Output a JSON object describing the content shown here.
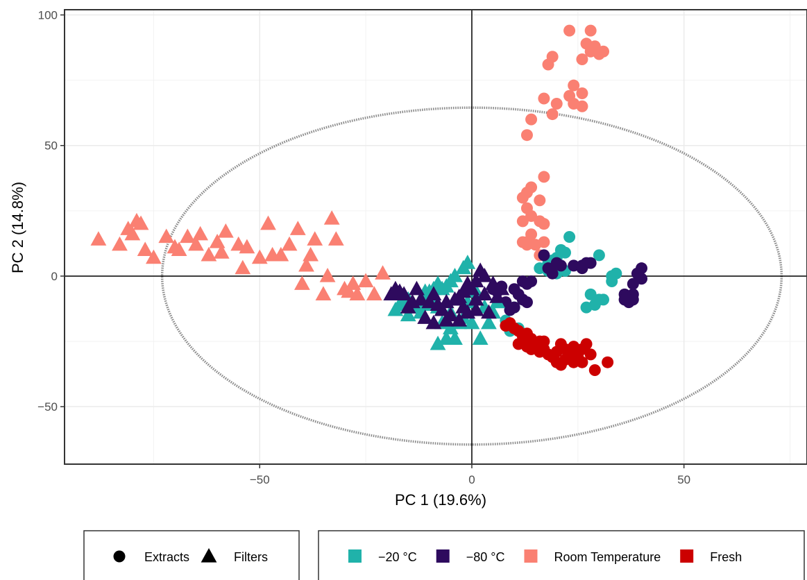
{
  "chart_data": {
    "type": "scatter",
    "title": "",
    "xlabel": "PC 1 (19.6%)",
    "ylabel": "PC 2 (14.8%)",
    "xlim": [
      -96,
      79
    ],
    "ylim": [
      -72,
      102
    ],
    "x_ticks": [
      -50,
      0,
      50
    ],
    "y_ticks": [
      -50,
      0,
      50,
      100
    ],
    "x_tick_labels": [
      "−50",
      "0",
      "50"
    ],
    "y_tick_labels": [
      "−50",
      "0",
      "50",
      "100"
    ],
    "grid": true,
    "reference_lines": {
      "x": 0,
      "y": 0
    },
    "ellipse": {
      "center": [
        0,
        0
      ],
      "rx": 73,
      "ry": 64.5,
      "style": "dotted",
      "color": "#8c8c8c"
    },
    "shape_legend": [
      {
        "name": "Extracts",
        "shape": "circle"
      },
      {
        "name": "Filters",
        "shape": "triangle"
      }
    ],
    "color_legend": [
      {
        "name": "−20 °C",
        "color": "#20b2aa"
      },
      {
        "name": "−80 °C",
        "color": "#2e0a5e"
      },
      {
        "name": "Room Temperature",
        "color": "#fa8072"
      },
      {
        "name": "Fresh",
        "color": "#cc0000"
      }
    ],
    "series": [
      {
        "name": "Room Temperature",
        "shape": "triangle",
        "color": "#fa8072",
        "points": [
          [
            -88,
            14
          ],
          [
            -83,
            12
          ],
          [
            -81,
            18
          ],
          [
            -79,
            21
          ],
          [
            -80,
            16
          ],
          [
            -78,
            20
          ],
          [
            -77,
            10
          ],
          [
            -75,
            7
          ],
          [
            -72,
            15
          ],
          [
            -70,
            11
          ],
          [
            -69,
            10
          ],
          [
            -67,
            15
          ],
          [
            -65,
            12
          ],
          [
            -64,
            16
          ],
          [
            -62,
            8
          ],
          [
            -60,
            13
          ],
          [
            -59,
            9
          ],
          [
            -58,
            17
          ],
          [
            -55,
            12
          ],
          [
            -54,
            3
          ],
          [
            -53,
            11
          ],
          [
            -50,
            7
          ],
          [
            -48,
            20
          ],
          [
            -47,
            8
          ],
          [
            -45,
            8
          ],
          [
            -43,
            12
          ],
          [
            -41,
            18
          ],
          [
            -40,
            -3
          ],
          [
            -39,
            4
          ],
          [
            -38,
            8
          ],
          [
            -37,
            14
          ],
          [
            -35,
            -7
          ],
          [
            -34,
            0
          ],
          [
            -33,
            22
          ],
          [
            -32,
            14
          ],
          [
            -30,
            -5
          ],
          [
            -29,
            -6
          ],
          [
            -28,
            -3
          ],
          [
            -27,
            -7
          ],
          [
            -25,
            -2
          ],
          [
            -23,
            -7
          ],
          [
            -21,
            1
          ]
        ]
      },
      {
        "name": "Room Temperature",
        "shape": "circle",
        "color": "#fa8072",
        "points": [
          [
            23,
            94
          ],
          [
            28,
            94
          ],
          [
            27,
            89
          ],
          [
            29,
            88
          ],
          [
            28,
            86
          ],
          [
            31,
            86
          ],
          [
            30,
            85
          ],
          [
            26,
            83
          ],
          [
            19,
            84
          ],
          [
            18,
            81
          ],
          [
            24,
            73
          ],
          [
            26,
            70
          ],
          [
            23,
            69
          ],
          [
            17,
            68
          ],
          [
            20,
            66
          ],
          [
            24,
            66
          ],
          [
            26,
            65
          ],
          [
            19,
            62
          ],
          [
            14,
            60
          ],
          [
            13,
            54
          ],
          [
            17,
            38
          ],
          [
            14,
            34
          ],
          [
            13,
            32
          ],
          [
            16,
            29
          ],
          [
            12,
            30
          ],
          [
            13,
            26
          ],
          [
            14,
            23
          ],
          [
            12,
            21
          ],
          [
            16,
            21
          ],
          [
            17,
            20
          ],
          [
            14,
            16
          ],
          [
            13,
            13
          ],
          [
            17,
            13
          ],
          [
            15,
            12
          ],
          [
            13,
            12
          ],
          [
            16,
            8
          ],
          [
            12,
            13
          ]
        ]
      },
      {
        "name": "−20 °C",
        "shape": "circle",
        "color": "#20b2aa",
        "points": [
          [
            23,
            15
          ],
          [
            21,
            10
          ],
          [
            20,
            7
          ],
          [
            22,
            9
          ],
          [
            19,
            6
          ],
          [
            18,
            5
          ],
          [
            16,
            3
          ],
          [
            18,
            2
          ],
          [
            20,
            1
          ],
          [
            22,
            2
          ],
          [
            30,
            8
          ],
          [
            33,
            0
          ],
          [
            34,
            1
          ],
          [
            33,
            -2
          ],
          [
            28,
            -7
          ],
          [
            30,
            -9
          ],
          [
            31,
            -9
          ],
          [
            29,
            -11
          ],
          [
            27,
            -12
          ],
          [
            10,
            -12
          ],
          [
            8,
            -17
          ],
          [
            9,
            -21
          ],
          [
            11,
            -20
          ],
          [
            12,
            -22
          ]
        ]
      },
      {
        "name": "−80 °C",
        "shape": "circle",
        "color": "#2e0a5e",
        "points": [
          [
            17,
            8
          ],
          [
            20,
            5
          ],
          [
            18,
            3
          ],
          [
            19,
            1
          ],
          [
            21,
            4
          ],
          [
            24,
            4
          ],
          [
            26,
            3
          ],
          [
            27,
            5
          ],
          [
            28,
            5
          ],
          [
            26,
            4
          ],
          [
            40,
            3
          ],
          [
            39,
            1
          ],
          [
            40,
            -1
          ],
          [
            38,
            -3
          ],
          [
            38,
            -7
          ],
          [
            37,
            -8
          ],
          [
            38,
            -9
          ],
          [
            36,
            -7
          ],
          [
            36,
            -9
          ],
          [
            37,
            -10
          ],
          [
            12,
            -2
          ],
          [
            13,
            -3
          ],
          [
            14,
            -2
          ],
          [
            10,
            -5
          ],
          [
            11,
            -7
          ],
          [
            12,
            -9
          ],
          [
            13,
            -10
          ],
          [
            10,
            -12
          ],
          [
            9,
            -13
          ],
          [
            8,
            -10
          ],
          [
            6,
            -6
          ],
          [
            7,
            -4
          ],
          [
            5,
            -5
          ]
        ]
      },
      {
        "name": "−20 °C",
        "shape": "triangle",
        "color": "#20b2aa",
        "points": [
          [
            -1,
            5
          ],
          [
            -2,
            3
          ],
          [
            -4,
            0
          ],
          [
            -5,
            -2
          ],
          [
            -6,
            -4
          ],
          [
            -7,
            -5
          ],
          [
            -8,
            -3
          ],
          [
            -9,
            -5
          ],
          [
            -10,
            -6
          ],
          [
            -11,
            -8
          ],
          [
            -12,
            -10
          ],
          [
            -13,
            -12
          ],
          [
            -14,
            -11
          ],
          [
            -15,
            -9
          ],
          [
            -16,
            -8
          ],
          [
            -17,
            -11
          ],
          [
            -18,
            -13
          ],
          [
            -15,
            -15
          ],
          [
            -12,
            -14
          ],
          [
            -8,
            -12
          ],
          [
            -7,
            -18
          ],
          [
            -5,
            -20
          ],
          [
            -3,
            -18
          ],
          [
            -2,
            -16
          ],
          [
            -4,
            -24
          ],
          [
            -6,
            -24
          ],
          [
            -8,
            -26
          ],
          [
            0,
            -18
          ],
          [
            2,
            -24
          ],
          [
            4,
            -18
          ],
          [
            5,
            -14
          ],
          [
            3,
            -12
          ],
          [
            6,
            -10
          ],
          [
            1,
            -6
          ],
          [
            -1,
            -10
          ],
          [
            -5,
            -14
          ],
          [
            -9,
            -9
          ],
          [
            -10,
            -11
          ],
          [
            -11,
            -6
          ]
        ]
      },
      {
        "name": "−80 °C",
        "shape": "triangle",
        "color": "#2e0a5e",
        "points": [
          [
            2,
            2
          ],
          [
            3,
            0
          ],
          [
            1,
            -2
          ],
          [
            -1,
            -3
          ],
          [
            0,
            -5
          ],
          [
            -2,
            -6
          ],
          [
            -3,
            -8
          ],
          [
            -4,
            -9
          ],
          [
            -6,
            -10
          ],
          [
            -8,
            -11
          ],
          [
            -10,
            -10
          ],
          [
            -12,
            -9
          ],
          [
            -14,
            -10
          ],
          [
            -15,
            -12
          ],
          [
            -16,
            -7
          ],
          [
            -18,
            -5
          ],
          [
            -19,
            -7
          ],
          [
            -17,
            -6
          ],
          [
            -13,
            -5
          ],
          [
            -9,
            -7
          ],
          [
            -7,
            -13
          ],
          [
            -5,
            -15
          ],
          [
            -3,
            -17
          ],
          [
            -6,
            -17
          ],
          [
            -9,
            -18
          ],
          [
            -11,
            -16
          ],
          [
            -2,
            -12
          ],
          [
            1,
            -13
          ],
          [
            4,
            -14
          ],
          [
            6,
            -8
          ],
          [
            7,
            -5
          ],
          [
            5,
            -3
          ],
          [
            3,
            -7
          ],
          [
            1,
            -9
          ],
          [
            -1,
            -14
          ]
        ]
      },
      {
        "name": "Fresh",
        "shape": "circle",
        "color": "#cc0000",
        "points": [
          [
            8,
            -19
          ],
          [
            9,
            -18
          ],
          [
            10,
            -20
          ],
          [
            11,
            -21
          ],
          [
            12,
            -23
          ],
          [
            13,
            -22
          ],
          [
            14,
            -24
          ],
          [
            13,
            -27
          ],
          [
            15,
            -26
          ],
          [
            16,
            -25
          ],
          [
            17,
            -28
          ],
          [
            18,
            -30
          ],
          [
            19,
            -31
          ],
          [
            20,
            -29
          ],
          [
            21,
            -26
          ],
          [
            22,
            -28
          ],
          [
            23,
            -30
          ],
          [
            24,
            -27
          ],
          [
            25,
            -29
          ],
          [
            26,
            -28
          ],
          [
            27,
            -26
          ],
          [
            25,
            -31
          ],
          [
            24,
            -33
          ],
          [
            22,
            -32
          ],
          [
            21,
            -34
          ],
          [
            20,
            -33
          ],
          [
            19,
            -31
          ],
          [
            26,
            -33
          ],
          [
            28,
            -30
          ],
          [
            29,
            -36
          ],
          [
            32,
            -33
          ],
          [
            11,
            -26
          ],
          [
            14,
            -28
          ],
          [
            17,
            -25
          ],
          [
            16,
            -29
          ]
        ]
      }
    ]
  }
}
